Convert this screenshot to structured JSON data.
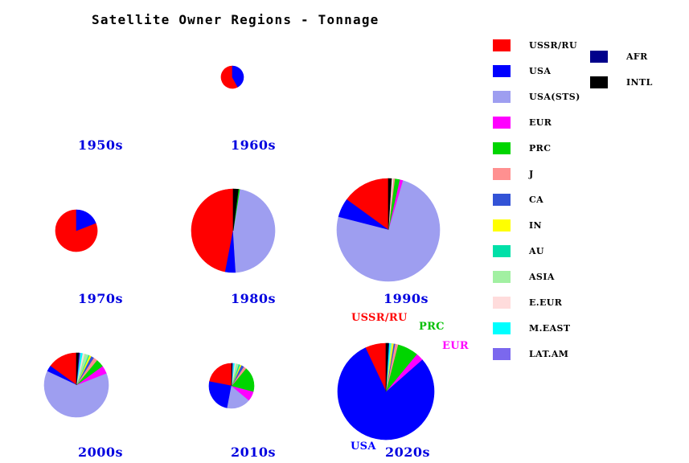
{
  "chart_data": {
    "type": "pie",
    "title": "Satellite Owner Regions - Tonnage",
    "layout_note": "grid of pie charts by decade; pie area proportional to total tonnage of that decade",
    "legend_position": "right",
    "decade_label_color": "#0000e0",
    "legend": [
      {
        "label": "USSR/RU",
        "color": "#ff0000",
        "column": 1
      },
      {
        "label": "USA",
        "color": "#0000ff",
        "column": 1
      },
      {
        "label": "USA(STS)",
        "color": "#9e9ef0",
        "column": 1
      },
      {
        "label": "EUR",
        "color": "#ff00ff",
        "column": 1
      },
      {
        "label": "PRC",
        "color": "#00d500",
        "column": 1
      },
      {
        "label": "J",
        "color": "#ff9090",
        "column": 1
      },
      {
        "label": "CA",
        "color": "#3353d6",
        "column": 1
      },
      {
        "label": "IN",
        "color": "#ffff00",
        "column": 1
      },
      {
        "label": "AU",
        "color": "#00e0a8",
        "column": 1
      },
      {
        "label": "ASIA",
        "color": "#a2f0a2",
        "column": 1
      },
      {
        "label": "E.EUR",
        "color": "#ffdcdc",
        "column": 1
      },
      {
        "label": "M.EAST",
        "color": "#00ffff",
        "column": 1
      },
      {
        "label": "LAT.AM",
        "color": "#7b68ee",
        "column": 1
      },
      {
        "label": "AFR",
        "color": "#00008b",
        "column": 2
      },
      {
        "label": "INTL",
        "color": "#000000",
        "column": 2
      }
    ],
    "pies": [
      {
        "decade": "1950s",
        "radius_px": 0,
        "slices_pct": {}
      },
      {
        "decade": "1960s",
        "radius_px": 14,
        "slices_pct": {
          "USSR/RU": 58,
          "USA": 42
        }
      },
      {
        "decade": "1970s",
        "radius_px": 26,
        "slices_pct": {
          "USSR/RU": 81,
          "USA": 19
        }
      },
      {
        "decade": "1980s",
        "radius_px": 52,
        "slices_pct": {
          "USSR/RU": 47,
          "USA": 4,
          "USA(STS)": 46.5,
          "PRC": 0.5,
          "INTL": 2
        }
      },
      {
        "decade": "1990s",
        "radius_px": 64,
        "slices_pct": {
          "USSR/RU": 15,
          "USA": 6,
          "USA(STS)": 74.5,
          "EUR": 1,
          "PRC": 1.5,
          "J": 0.5,
          "E.EUR": 0.5,
          "INTL": 1
        }
      },
      {
        "decade": "2000s",
        "radius_px": 40,
        "slices_pct": {
          "USSR/RU": 15,
          "USA": 3,
          "USA(STS)": 63,
          "EUR": 4,
          "PRC": 4,
          "J": 2,
          "CA": 1.5,
          "IN": 1,
          "AU": 0.5,
          "ASIA": 2,
          "E.EUR": 1,
          "M.EAST": 1,
          "LAT.AM": 0.5,
          "AFR": 0.5,
          "INTL": 1
        }
      },
      {
        "decade": "2010s",
        "radius_px": 28,
        "slices_pct": {
          "USSR/RU": 22,
          "USA": 25,
          "USA(STS)": 17,
          "EUR": 7,
          "PRC": 18,
          "J": 2,
          "CA": 2,
          "IN": 1,
          "AU": 1,
          "ASIA": 2,
          "E.EUR": 1,
          "M.EAST": 1,
          "LAT.AM": 0.5,
          "AFR": 0.3,
          "INTL": 0.2
        }
      },
      {
        "decade": "2020s",
        "radius_px": 60,
        "slices_pct": {
          "USSR/RU": 7,
          "USA": 79.5,
          "EUR": 2.5,
          "PRC": 7,
          "J": 1,
          "CA": 0.5,
          "IN": 0.5,
          "ASIA": 0.5,
          "M.EAST": 0.5,
          "AFR": 0.3,
          "INTL": 0.7
        }
      }
    ],
    "annotations": [
      {
        "text": "USSR/RU",
        "color": "#ff0000",
        "attached_to": "2020s"
      },
      {
        "text": "PRC",
        "color": "#00c000",
        "attached_to": "2020s"
      },
      {
        "text": "EUR",
        "color": "#ff00ff",
        "attached_to": "2020s"
      },
      {
        "text": "USA",
        "color": "#0000ff",
        "attached_to": "2020s"
      }
    ]
  }
}
